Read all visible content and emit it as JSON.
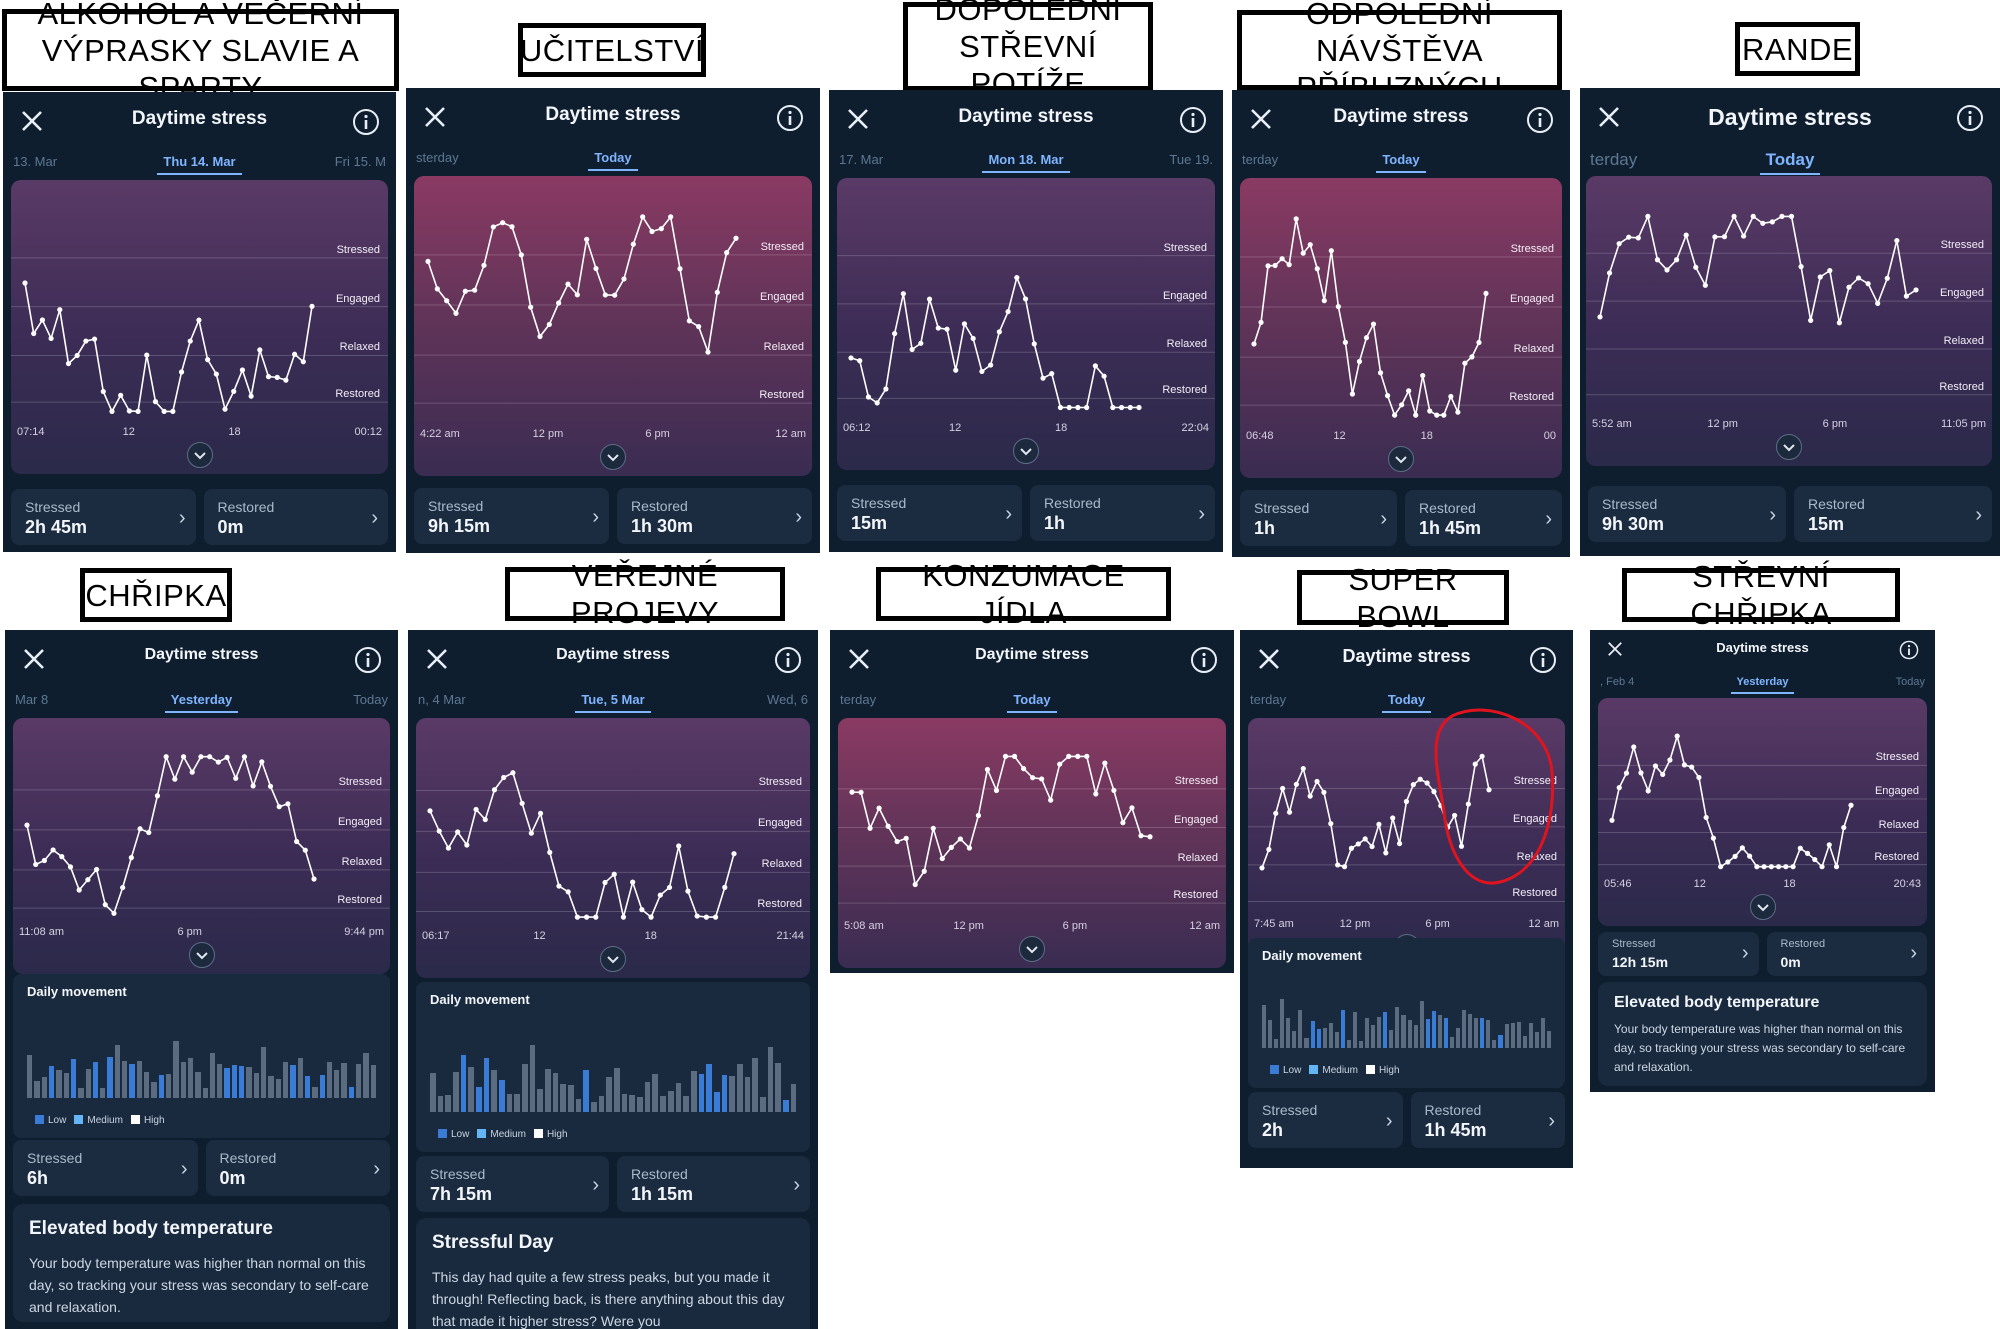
{
  "captions": {
    "c1": "ALKOHOL A VEČERNÍ\nVÝPRASKY SLAVIE A SPARTY",
    "c2": "UČITELSTVÍ",
    "c3": "DOPOLEDNÍ\nSTŘEVNÍ POTÍŽE",
    "c4": "ODPOLEDNÍ\nNÁVŠTĚVA PŘÍBUZNÝCH",
    "c5": "RANDE",
    "c6": "CHŘIPKA",
    "c7": "VEŘEJNÉ PROJEVY",
    "c8": "KONZUMACE JÍDLA",
    "c9": "SUPER BOWL",
    "c10": "STŘEVNÍ CHŘIPKA"
  },
  "common": {
    "title": "Daytime stress",
    "zones": [
      "Stressed",
      "Engaged",
      "Relaxed",
      "Restored"
    ],
    "stressed_label": "Stressed",
    "restored_label": "Restored",
    "movement_title": "Daily movement",
    "legend": [
      "Low",
      "Medium",
      "High"
    ],
    "arrow": "›",
    "colors": {
      "line": "#ffffff",
      "legend_low": "#3a7bd5",
      "legend_medium": "#64b5f6",
      "legend_high": "#ffffff",
      "annotation": "#e0141e"
    }
  },
  "panels": {
    "p1": {
      "date_prev": "13. Mar",
      "date_cur": "Thu 14. Mar",
      "date_next": "Fri 15. M",
      "x_labels": [
        "07:14",
        "12",
        "18",
        "00:12"
      ],
      "stressed": "2h 45m",
      "restored": "0m"
    },
    "p2": {
      "date_prev": "sterday",
      "date_cur": "Today",
      "date_next": "",
      "x_labels": [
        "4:22 am",
        "12 pm",
        "6 pm",
        "12 am"
      ],
      "stressed": "9h 15m",
      "restored": "1h 30m"
    },
    "p3": {
      "date_prev": "17. Mar",
      "date_cur": "Mon 18. Mar",
      "date_next": "Tue 19.",
      "x_labels": [
        "06:12",
        "12",
        "18",
        "22:04"
      ],
      "stressed": "15m",
      "restored": "1h"
    },
    "p4": {
      "date_prev": "terday",
      "date_cur": "Today",
      "date_next": "",
      "x_labels": [
        "06:48",
        "12",
        "18",
        "00"
      ],
      "stressed": "1h",
      "restored": "1h 45m"
    },
    "p5": {
      "date_prev": "terday",
      "date_cur": "Today",
      "date_next": "",
      "x_labels": [
        "5:52 am",
        "12 pm",
        "6 pm",
        "11:05 pm"
      ],
      "stressed": "9h 30m",
      "restored": "15m"
    },
    "p6": {
      "date_prev": "Mar 8",
      "date_cur": "Yesterday",
      "date_next": "Today",
      "x_labels": [
        "11:08 am",
        "6 pm",
        "9:44 pm"
      ],
      "stressed": "6h",
      "restored": "0m",
      "card_title": "Elevated body temperature",
      "card_body": "Your body temperature was higher than normal on this day, so tracking your stress was secondary to self-care and relaxation."
    },
    "p7": {
      "date_prev": "n, 4 Mar",
      "date_cur": "Tue, 5 Mar",
      "date_next": "Wed, 6",
      "x_labels": [
        "06:17",
        "12",
        "18",
        "21:44"
      ],
      "stressed": "7h 15m",
      "restored": "1h 15m",
      "card_title": "Stressful Day",
      "card_body": "This day had quite a few stress peaks, but you made it through! Reflecting back, is there anything about this day that made it higher stress? Were you"
    },
    "p8": {
      "date_prev": "terday",
      "date_cur": "Today",
      "date_next": "",
      "x_labels": [
        "5:08 am",
        "12 pm",
        "6 pm",
        "12 am"
      ]
    },
    "p9": {
      "date_prev": "terday",
      "date_cur": "Today",
      "date_next": "",
      "x_labels": [
        "7:45 am",
        "12 pm",
        "6 pm",
        "12 am"
      ],
      "stressed": "2h",
      "restored": "1h 45m"
    },
    "p10": {
      "date_prev": ", Feb 4",
      "date_cur": "Yesterday",
      "date_next": "Today",
      "x_labels": [
        "05:46",
        "12",
        "18",
        "20:43"
      ],
      "stressed": "12h 15m",
      "restored": "0m",
      "card_title": "Elevated body temperature",
      "card_body": "Your body temperature was higher than normal on this day, so tracking your stress was secondary to self-care and relaxation."
    }
  }
}
